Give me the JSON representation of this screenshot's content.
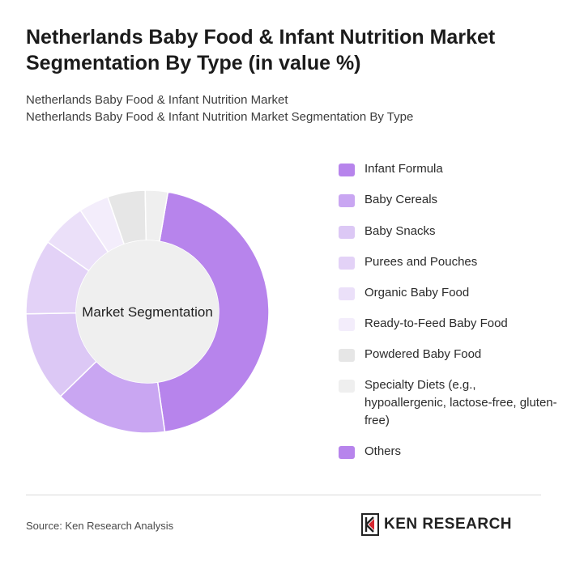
{
  "header": {
    "title": "Netherlands Baby Food & Infant Nutrition Market Segmentation By Type (in value %)",
    "subtitle_lines": [
      "Netherlands Baby Food & Infant Nutrition Market",
      "Netherlands Baby Food & Infant Nutrition Market Segmentation By Type"
    ]
  },
  "chart_data": {
    "type": "pie",
    "variant": "donut",
    "center_label": "Market Segmentation",
    "categories": [
      "Infant Formula",
      "Baby Cereals",
      "Baby Snacks",
      "Purees and Pouches",
      "Organic Baby Food",
      "Ready-to-Feed Baby Food",
      "Powdered Baby Food",
      "Specialty Diets (e.g., hypoallergenic, lactose-free, gluten-free)",
      "Others"
    ],
    "values": [
      45,
      15,
      12,
      10,
      6,
      4,
      5,
      3,
      0
    ],
    "colors": [
      "#b784ec",
      "#c9a6f2",
      "#dcc8f5",
      "#e3d2f7",
      "#ebe0f9",
      "#f3edfb",
      "#e6e6e6",
      "#efefef",
      "#b784ec"
    ],
    "legend_position": "right"
  },
  "footer": {
    "source": "Source: Ken Research Analysis",
    "brand": "KEN RESEARCH"
  }
}
